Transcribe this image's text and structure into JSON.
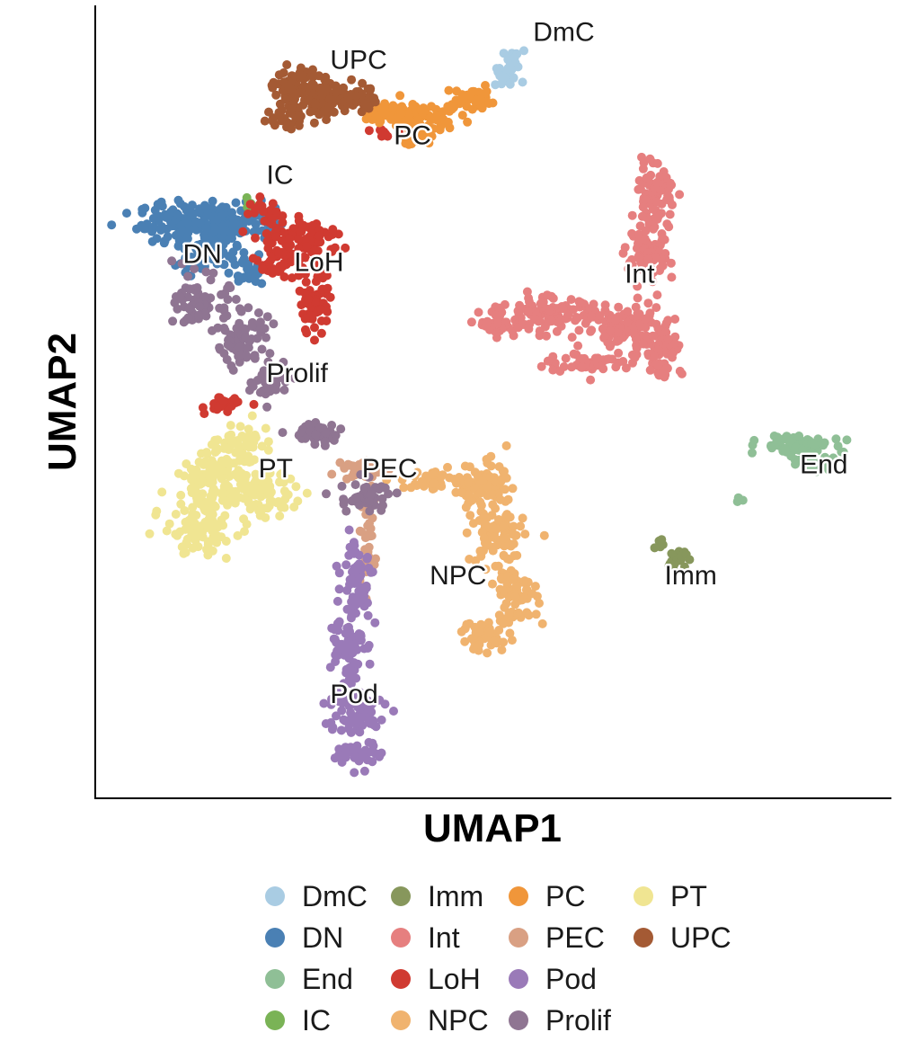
{
  "chart_data": {
    "type": "scatter",
    "title": "",
    "xlabel": "UMAP1",
    "ylabel": "UMAP2",
    "xlim": [
      0,
      100
    ],
    "ylim": [
      0,
      100
    ],
    "grid": false,
    "ticks": false,
    "legend_position": "bottom",
    "legend_columns": 4,
    "series": [
      {
        "name": "DmC",
        "color": "#a9cce3",
        "label_x": 55.0,
        "label_y": 95.5,
        "clouds": [
          [
            51.5,
            91.0,
            1.8,
            1.2,
            25
          ],
          [
            52.5,
            93.0,
            1.2,
            1.2,
            20
          ]
        ]
      },
      {
        "name": "DN",
        "color": "#4a80b4",
        "label_x": 11.0,
        "label_y": 67.5,
        "clouds": [
          [
            11.0,
            72.5,
            5.0,
            2.5,
            110
          ],
          [
            17.0,
            73.0,
            5.0,
            2.2,
            100
          ],
          [
            14.0,
            68.5,
            3.5,
            2.0,
            60
          ],
          [
            19.0,
            66.5,
            2.5,
            1.6,
            30
          ]
        ]
      },
      {
        "name": "End",
        "color": "#8fbf96",
        "label_x": 88.5,
        "label_y": 41.0,
        "clouds": [
          [
            88.0,
            44.5,
            4.0,
            1.3,
            80
          ],
          [
            90.5,
            42.0,
            2.2,
            1.0,
            30
          ],
          [
            80.5,
            37.5,
            0.6,
            0.5,
            6
          ]
        ]
      },
      {
        "name": "IC",
        "color": "#7ab356",
        "label_x": 21.5,
        "label_y": 77.5,
        "clouds": [
          [
            19.3,
            75.0,
            0.5,
            0.6,
            10
          ]
        ]
      },
      {
        "name": "Imm",
        "color": "#87975c",
        "label_x": 71.5,
        "label_y": 27.0,
        "clouds": [
          [
            73.0,
            30.0,
            1.2,
            1.0,
            25
          ],
          [
            71.0,
            32.0,
            0.6,
            0.6,
            8
          ]
        ]
      },
      {
        "name": "Int",
        "color": "#e67f7f",
        "label_x": 66.5,
        "label_y": 65.0,
        "clouds": [
          [
            70.5,
            76.0,
            2.0,
            4.0,
            70
          ],
          [
            69.5,
            68.0,
            2.5,
            3.5,
            80
          ],
          [
            57.0,
            61.0,
            5.0,
            2.0,
            100
          ],
          [
            66.5,
            59.5,
            4.5,
            2.5,
            100
          ],
          [
            71.0,
            57.0,
            2.5,
            3.5,
            70
          ],
          [
            62.0,
            55.0,
            5.0,
            1.2,
            50
          ],
          [
            51.0,
            60.0,
            2.5,
            1.5,
            40
          ]
        ]
      },
      {
        "name": "LoH",
        "color": "#d03a31",
        "label_x": 25.0,
        "label_y": 66.5,
        "clouds": [
          [
            26.0,
            70.5,
            4.5,
            2.0,
            90
          ],
          [
            23.5,
            67.5,
            3.0,
            1.8,
            50
          ],
          [
            27.5,
            62.5,
            1.8,
            3.5,
            60
          ],
          [
            16.0,
            49.5,
            2.0,
            0.9,
            25
          ],
          [
            36.5,
            84.0,
            1.5,
            0.6,
            10
          ],
          [
            21.0,
            74.0,
            2.0,
            1.2,
            20
          ]
        ]
      },
      {
        "name": "NPC",
        "color": "#f0b36f",
        "label_x": 42.0,
        "label_y": 27.0,
        "clouds": [
          [
            49.0,
            39.0,
            4.0,
            3.0,
            90
          ],
          [
            50.5,
            33.0,
            3.0,
            3.0,
            70
          ],
          [
            52.5,
            26.0,
            2.8,
            3.5,
            70
          ],
          [
            49.0,
            20.5,
            2.8,
            1.8,
            45
          ],
          [
            42.5,
            40.0,
            3.5,
            1.2,
            40
          ]
        ]
      },
      {
        "name": "PC",
        "color": "#f0963a",
        "label_x": 37.5,
        "label_y": 82.5,
        "clouds": [
          [
            37.5,
            86.5,
            3.5,
            1.5,
            60
          ],
          [
            42.0,
            85.5,
            3.5,
            1.5,
            60
          ],
          [
            47.5,
            88.0,
            3.0,
            1.4,
            50
          ],
          [
            40.0,
            83.5,
            2.0,
            1.0,
            30
          ]
        ]
      },
      {
        "name": "PEC",
        "color": "#d9a083",
        "label_x": 33.5,
        "label_y": 40.5,
        "clouds": [
          [
            34.0,
            41.5,
            2.5,
            1.2,
            40
          ],
          [
            34.0,
            33.0,
            1.0,
            5.0,
            35
          ]
        ]
      },
      {
        "name": "Pod",
        "color": "#9a7ab8",
        "label_x": 29.5,
        "label_y": 12.0,
        "clouds": [
          [
            33.0,
            28.0,
            1.8,
            4.5,
            60
          ],
          [
            31.5,
            19.5,
            2.0,
            4.0,
            70
          ],
          [
            32.5,
            11.0,
            3.5,
            2.8,
            90
          ],
          [
            33.0,
            5.5,
            2.5,
            1.5,
            40
          ]
        ]
      },
      {
        "name": "Prolif",
        "color": "#8f7592",
        "label_x": 21.5,
        "label_y": 52.5,
        "clouds": [
          [
            13.5,
            62.5,
            3.0,
            3.0,
            70
          ],
          [
            18.5,
            58.0,
            3.0,
            3.0,
            70
          ],
          [
            22.0,
            52.0,
            2.0,
            2.0,
            40
          ],
          [
            27.5,
            46.0,
            3.0,
            1.2,
            40
          ],
          [
            34.0,
            38.0,
            3.0,
            2.0,
            50
          ]
        ]
      },
      {
        "name": "PT",
        "color": "#f0e592",
        "label_x": 20.5,
        "label_y": 40.5,
        "clouds": [
          [
            15.0,
            40.0,
            4.5,
            3.5,
            110
          ],
          [
            13.0,
            34.0,
            4.0,
            3.0,
            90
          ],
          [
            20.5,
            38.5,
            4.5,
            2.5,
            80
          ],
          [
            17.5,
            44.5,
            3.5,
            1.8,
            50
          ]
        ]
      },
      {
        "name": "UPC",
        "color": "#a45a34",
        "label_x": 29.5,
        "label_y": 92.0,
        "clouds": [
          [
            26.0,
            90.0,
            3.0,
            2.0,
            70
          ],
          [
            29.0,
            88.0,
            3.0,
            2.0,
            70
          ],
          [
            24.0,
            86.0,
            1.8,
            1.6,
            30
          ],
          [
            33.0,
            88.5,
            2.0,
            1.6,
            40
          ]
        ]
      }
    ]
  }
}
